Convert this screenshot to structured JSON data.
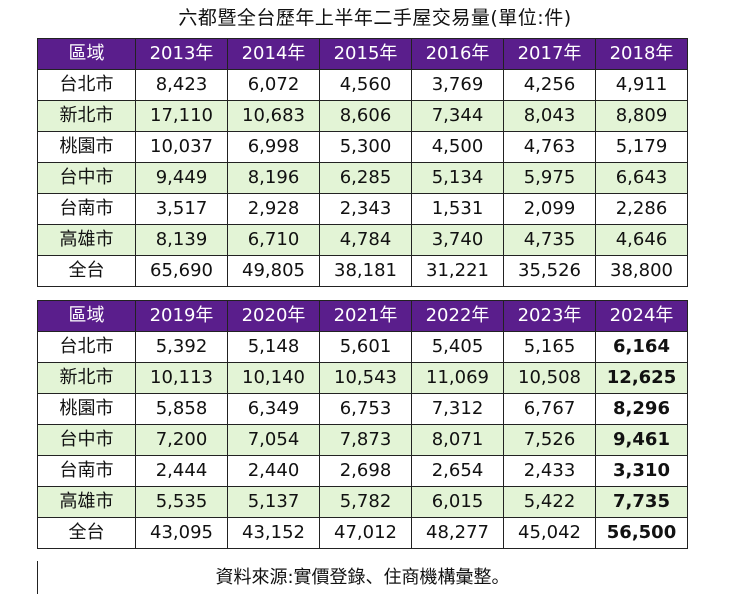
{
  "title": "六都暨全台歷年上半年二手屋交易量(單位:件)",
  "source": "資料來源:實價登錄、住商機構彙整。",
  "colors": {
    "header_bg": "#5a1e8c",
    "header_text": "#ffffff",
    "stripe": "#e3f4d6"
  },
  "tables": [
    {
      "headers": [
        "區域",
        "2013年",
        "2014年",
        "2015年",
        "2016年",
        "2017年",
        "2018年"
      ],
      "rows": [
        [
          "台北市",
          "8,423",
          "6,072",
          "4,560",
          "3,769",
          "4,256",
          "4,911"
        ],
        [
          "新北市",
          "17,110",
          "10,683",
          "8,606",
          "7,344",
          "8,043",
          "8,809"
        ],
        [
          "桃園市",
          "10,037",
          "6,998",
          "5,300",
          "4,500",
          "4,763",
          "5,179"
        ],
        [
          "台中市",
          "9,449",
          "8,196",
          "6,285",
          "5,134",
          "5,975",
          "6,643"
        ],
        [
          "台南市",
          "3,517",
          "2,928",
          "2,343",
          "1,531",
          "2,099",
          "2,286"
        ],
        [
          "高雄市",
          "8,139",
          "6,710",
          "4,784",
          "3,740",
          "4,735",
          "4,646"
        ],
        [
          "全台",
          "65,690",
          "49,805",
          "38,181",
          "31,221",
          "35,526",
          "38,800"
        ]
      ]
    },
    {
      "headers": [
        "區域",
        "2019年",
        "2020年",
        "2021年",
        "2022年",
        "2023年",
        "2024年"
      ],
      "rows": [
        [
          "台北市",
          "5,392",
          "5,148",
          "5,601",
          "5,405",
          "5,165",
          "6,164"
        ],
        [
          "新北市",
          "10,113",
          "10,140",
          "10,543",
          "11,069",
          "10,508",
          "12,625"
        ],
        [
          "桃園市",
          "5,858",
          "6,349",
          "6,753",
          "7,312",
          "6,767",
          "8,296"
        ],
        [
          "台中市",
          "7,200",
          "7,054",
          "7,873",
          "8,071",
          "7,526",
          "9,461"
        ],
        [
          "台南市",
          "2,444",
          "2,440",
          "2,698",
          "2,654",
          "2,433",
          "3,310"
        ],
        [
          "高雄市",
          "5,535",
          "5,137",
          "5,782",
          "6,015",
          "5,422",
          "7,735"
        ],
        [
          "全台",
          "43,095",
          "43,152",
          "47,012",
          "48,277",
          "45,042",
          "56,500"
        ]
      ]
    }
  ]
}
